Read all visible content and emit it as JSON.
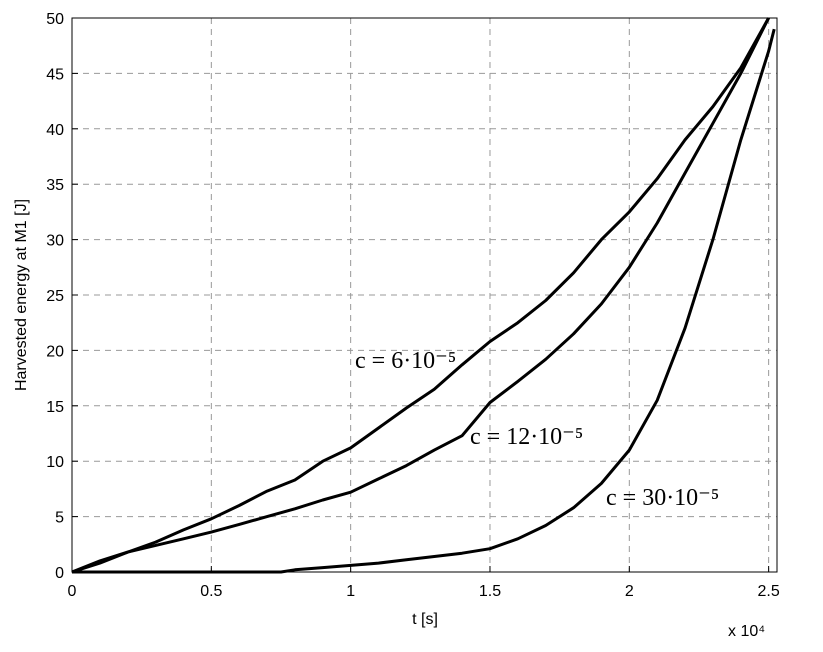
{
  "chart_data": {
    "type": "line",
    "xlabel": "t [s]",
    "ylabel": "Harvested energy at M1 [J]",
    "x_multiplier": "x 10⁴",
    "xlim": [
      0,
      2.53
    ],
    "ylim": [
      0,
      50
    ],
    "xticks": [
      0,
      0.5,
      1,
      1.5,
      2,
      2.5
    ],
    "yticks": [
      0,
      5,
      10,
      15,
      20,
      25,
      30,
      35,
      40,
      45,
      50
    ],
    "grid": true,
    "series": [
      {
        "name": "c = 6·10⁻⁵",
        "color": "#000000",
        "x": [
          0,
          0.1,
          0.2,
          0.3,
          0.4,
          0.5,
          0.6,
          0.7,
          0.8,
          0.9,
          1.0,
          1.1,
          1.2,
          1.3,
          1.4,
          1.5,
          1.6,
          1.7,
          1.8,
          1.9,
          2.0,
          2.1,
          2.2,
          2.3,
          2.4,
          2.5
        ],
        "values": [
          0,
          0.8,
          1.8,
          2.7,
          3.8,
          4.8,
          6,
          7.3,
          8.3,
          10,
          11.2,
          13,
          14.8,
          16.5,
          18.7,
          20.8,
          22.5,
          24.5,
          27,
          30,
          32.5,
          35.5,
          39,
          42,
          45.5,
          50
        ]
      },
      {
        "name": "c = 12·10⁻⁵",
        "color": "#000000",
        "x": [
          0,
          0.1,
          0.2,
          0.3,
          0.4,
          0.5,
          0.6,
          0.7,
          0.8,
          0.9,
          1.0,
          1.1,
          1.2,
          1.3,
          1.4,
          1.5,
          1.6,
          1.7,
          1.8,
          1.9,
          2.0,
          2.1,
          2.2,
          2.3,
          2.4,
          2.5
        ],
        "values": [
          0,
          1,
          1.8,
          2.4,
          3,
          3.6,
          4.3,
          5,
          5.7,
          6.5,
          7.2,
          8.4,
          9.6,
          11,
          12.3,
          15.3,
          17.2,
          19.2,
          21.5,
          24.2,
          27.5,
          31.5,
          36,
          40.5,
          45,
          50
        ]
      },
      {
        "name": "c = 30·10⁻⁵",
        "color": "#000000",
        "x": [
          0,
          0.5,
          0.75,
          0.8,
          0.9,
          1.0,
          1.1,
          1.2,
          1.3,
          1.4,
          1.5,
          1.6,
          1.7,
          1.8,
          1.9,
          2.0,
          2.1,
          2.2,
          2.3,
          2.4,
          2.5,
          2.52
        ],
        "values": [
          0,
          0,
          0,
          0.2,
          0.4,
          0.6,
          0.8,
          1.1,
          1.4,
          1.7,
          2.1,
          3,
          4.2,
          5.8,
          8,
          11,
          15.5,
          22,
          30,
          39,
          47,
          49
        ]
      }
    ]
  }
}
